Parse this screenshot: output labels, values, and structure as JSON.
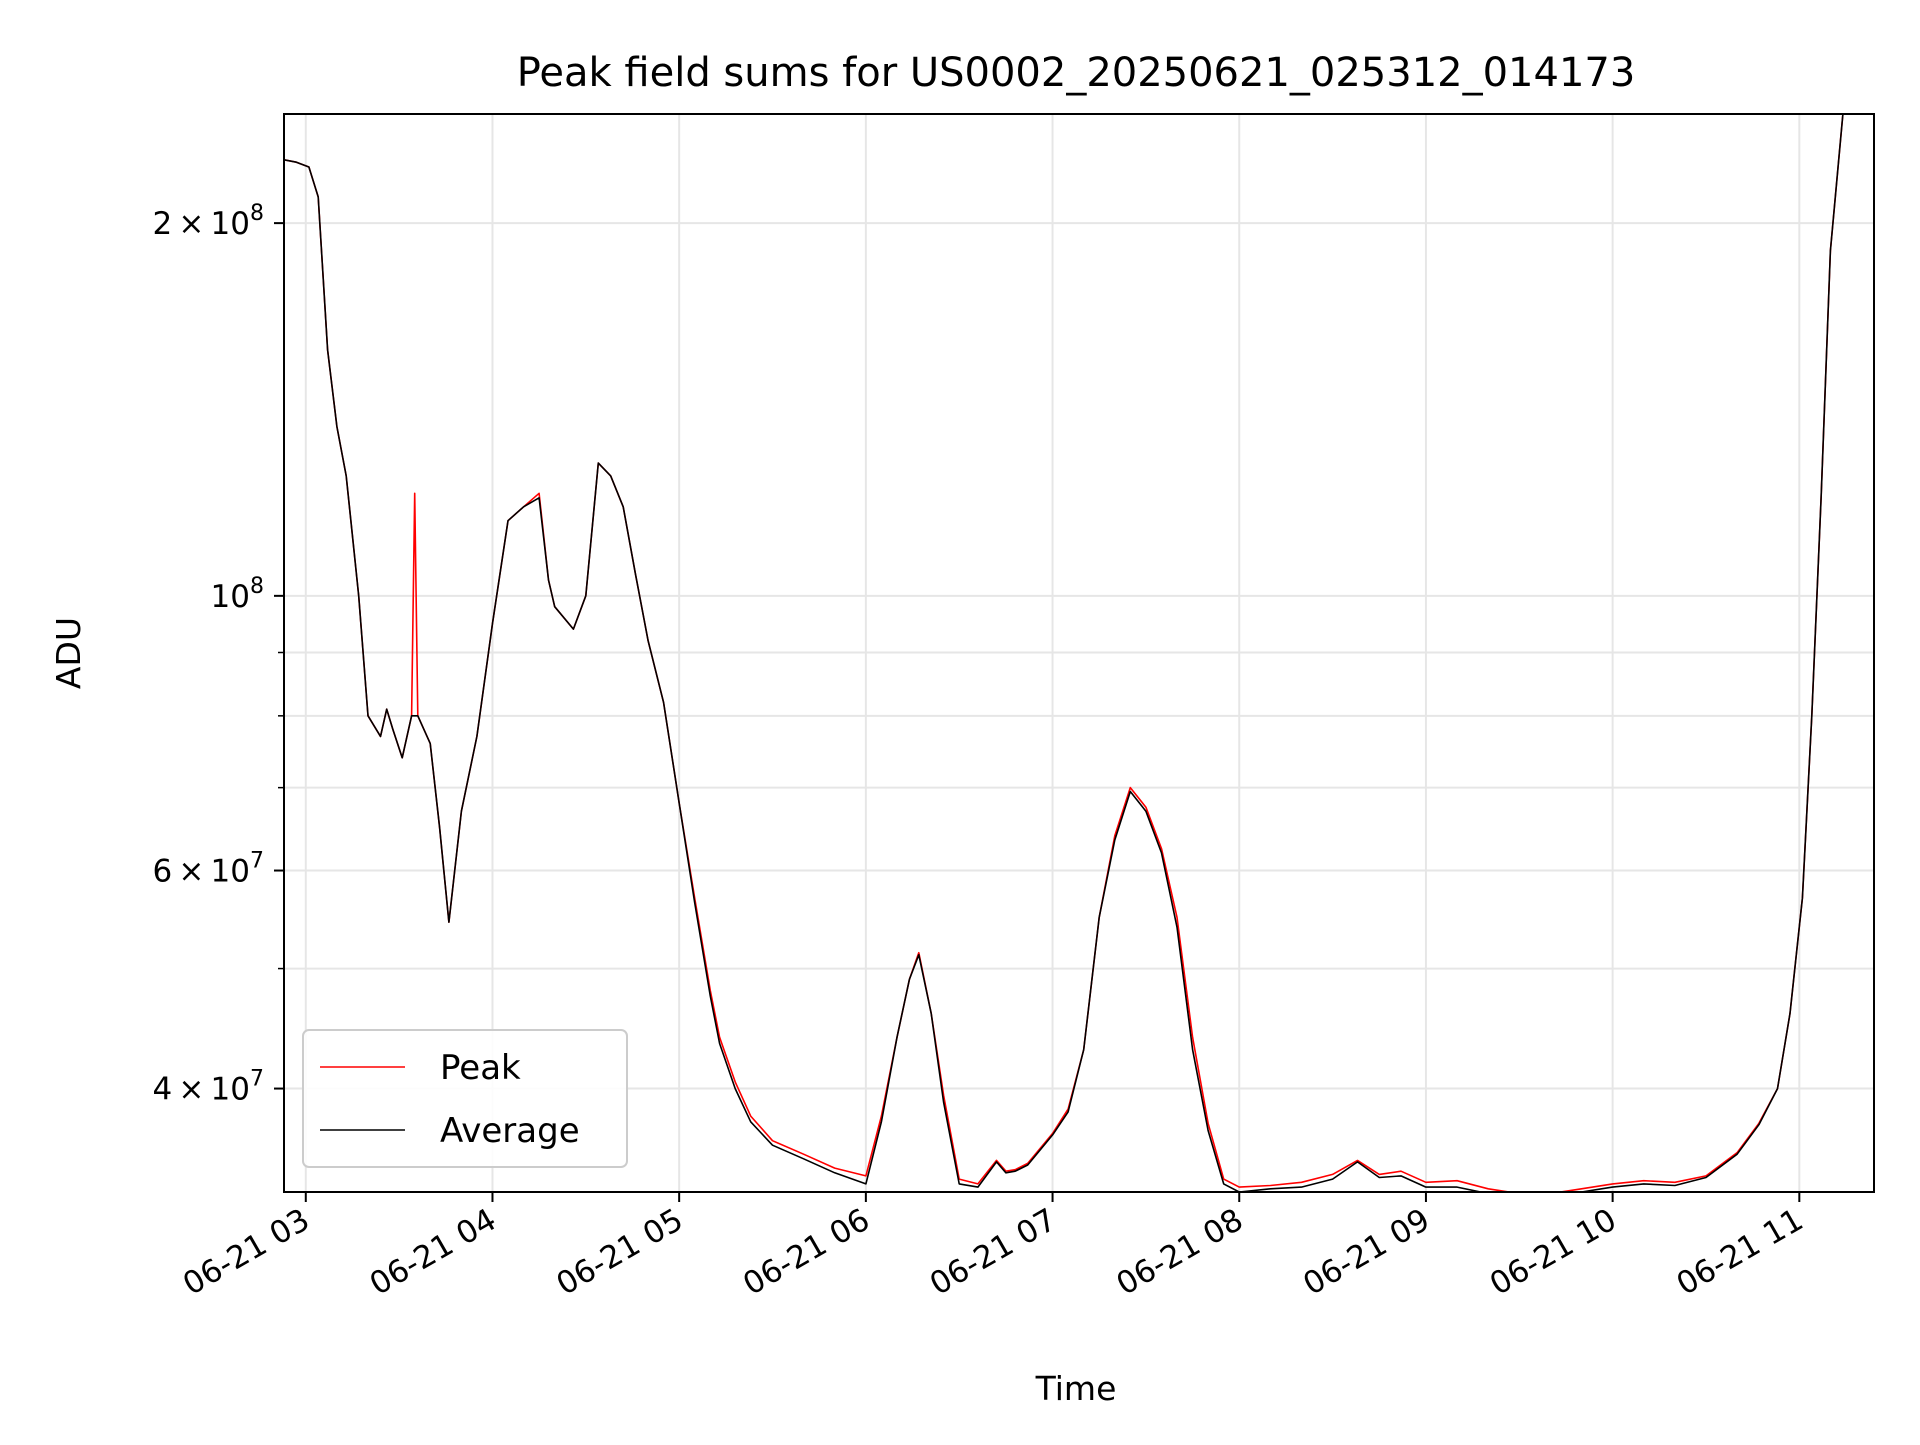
{
  "chart_data": {
    "type": "line",
    "title": "Peak field sums for US0002_20250621_025312_014173",
    "xlabel": "Time",
    "ylabel": "ADU",
    "yscale": "log",
    "grid": true,
    "legend_position": "lower-left",
    "xlim": [
      "2025-06-21 02:53",
      "2025-06-21 11:24"
    ],
    "ylim": [
      33000000,
      245000000
    ],
    "x_tick_labels": [
      "06-21 03",
      "06-21 04",
      "06-21 05",
      "06-21 06",
      "06-21 07",
      "06-21 08",
      "06-21 09",
      "06-21 10",
      "06-21 11"
    ],
    "x_tick_times": [
      "2025-06-21 03:00",
      "2025-06-21 04:00",
      "2025-06-21 05:00",
      "2025-06-21 06:00",
      "2025-06-21 07:00",
      "2025-06-21 08:00",
      "2025-06-21 09:00",
      "2025-06-21 10:00",
      "2025-06-21 11:00"
    ],
    "y_major_ticks": [
      {
        "value": 40000000,
        "mantissa": "4",
        "exponent": "7"
      },
      {
        "value": 60000000,
        "mantissa": "6",
        "exponent": "7"
      },
      {
        "value": 100000000,
        "mantissa": "",
        "exponent": "8"
      },
      {
        "value": 200000000,
        "mantissa": "2",
        "exponent": "8"
      }
    ],
    "y_minor_ticks": [
      50000000,
      70000000,
      80000000,
      90000000
    ],
    "base_label": "10",
    "times_sign": "×",
    "series": [
      {
        "name": "Peak",
        "color": "#ff0000",
        "x": [
          "2025-06-21 02:53",
          "2025-06-21 02:57",
          "2025-06-21 03:01",
          "2025-06-21 03:04",
          "2025-06-21 03:07",
          "2025-06-21 03:10",
          "2025-06-21 03:13",
          "2025-06-21 03:17",
          "2025-06-21 03:20",
          "2025-06-21 03:24",
          "2025-06-21 03:26",
          "2025-06-21 03:28",
          "2025-06-21 03:31",
          "2025-06-21 03:34",
          "2025-06-21 03:35",
          "2025-06-21 03:36",
          "2025-06-21 03:40",
          "2025-06-21 03:43",
          "2025-06-21 03:46",
          "2025-06-21 03:50",
          "2025-06-21 03:55",
          "2025-06-21 04:00",
          "2025-06-21 04:05",
          "2025-06-21 04:10",
          "2025-06-21 04:15",
          "2025-06-21 04:18",
          "2025-06-21 04:20",
          "2025-06-21 04:26",
          "2025-06-21 04:30",
          "2025-06-21 04:34",
          "2025-06-21 04:38",
          "2025-06-21 04:42",
          "2025-06-21 04:46",
          "2025-06-21 04:50",
          "2025-06-21 04:55",
          "2025-06-21 05:00",
          "2025-06-21 05:05",
          "2025-06-21 05:10",
          "2025-06-21 05:13",
          "2025-06-21 05:18",
          "2025-06-21 05:23",
          "2025-06-21 05:30",
          "2025-06-21 05:40",
          "2025-06-21 05:50",
          "2025-06-21 06:00",
          "2025-06-21 06:05",
          "2025-06-21 06:10",
          "2025-06-21 06:14",
          "2025-06-21 06:17",
          "2025-06-21 06:21",
          "2025-06-21 06:25",
          "2025-06-21 06:30",
          "2025-06-21 06:36",
          "2025-06-21 06:42",
          "2025-06-21 06:45",
          "2025-06-21 06:48",
          "2025-06-21 06:52",
          "2025-06-21 07:00",
          "2025-06-21 07:05",
          "2025-06-21 07:10",
          "2025-06-21 07:15",
          "2025-06-21 07:20",
          "2025-06-21 07:25",
          "2025-06-21 07:30",
          "2025-06-21 07:35",
          "2025-06-21 07:40",
          "2025-06-21 07:45",
          "2025-06-21 07:50",
          "2025-06-21 07:55",
          "2025-06-21 08:00",
          "2025-06-21 08:10",
          "2025-06-21 08:20",
          "2025-06-21 08:30",
          "2025-06-21 08:38",
          "2025-06-21 08:45",
          "2025-06-21 08:52",
          "2025-06-21 09:00",
          "2025-06-21 09:10",
          "2025-06-21 09:20",
          "2025-06-21 09:30",
          "2025-06-21 09:40",
          "2025-06-21 09:50",
          "2025-06-21 10:00",
          "2025-06-21 10:10",
          "2025-06-21 10:20",
          "2025-06-21 10:30",
          "2025-06-21 10:40",
          "2025-06-21 10:47",
          "2025-06-21 10:53",
          "2025-06-21 10:57",
          "2025-06-21 11:01",
          "2025-06-21 11:04",
          "2025-06-21 11:07",
          "2025-06-21 11:10",
          "2025-06-21 11:14"
        ],
        "y": [
          225000000,
          224000000,
          222000000,
          210000000,
          158000000,
          137000000,
          125000000,
          100000000,
          80000000,
          77000000,
          81000000,
          78000000,
          74000000,
          80000000,
          121000000,
          80000000,
          76000000,
          65000000,
          54500000,
          67000000,
          77000000,
          95000000,
          115000000,
          118000000,
          121000000,
          103000000,
          98000000,
          94000000,
          100000000,
          128000000,
          125000000,
          118000000,
          104000000,
          92000000,
          82000000,
          68000000,
          57000000,
          48000000,
          44000000,
          40500000,
          38000000,
          36300000,
          35400000,
          34500000,
          34000000,
          38000000,
          44000000,
          49000000,
          51500000,
          46000000,
          39500000,
          33800000,
          33500000,
          35000000,
          34300000,
          34400000,
          34800000,
          36800000,
          38500000,
          43000000,
          55000000,
          64000000,
          70000000,
          67500000,
          62500000,
          55000000,
          44000000,
          37500000,
          33800000,
          33300000,
          33400000,
          33600000,
          34100000,
          35000000,
          34100000,
          34300000,
          33600000,
          33700000,
          33200000,
          32900000,
          32900000,
          33200000,
          33500000,
          33700000,
          33600000,
          34000000,
          35500000,
          37500000,
          40000000,
          46000000,
          57000000,
          80000000,
          120000000,
          190000000,
          245000000
        ]
      },
      {
        "name": "Average",
        "color": "#000000",
        "x": [
          "2025-06-21 02:53",
          "2025-06-21 02:57",
          "2025-06-21 03:01",
          "2025-06-21 03:04",
          "2025-06-21 03:07",
          "2025-06-21 03:10",
          "2025-06-21 03:13",
          "2025-06-21 03:17",
          "2025-06-21 03:20",
          "2025-06-21 03:24",
          "2025-06-21 03:26",
          "2025-06-21 03:28",
          "2025-06-21 03:31",
          "2025-06-21 03:34",
          "2025-06-21 03:36",
          "2025-06-21 03:40",
          "2025-06-21 03:43",
          "2025-06-21 03:46",
          "2025-06-21 03:50",
          "2025-06-21 03:55",
          "2025-06-21 04:00",
          "2025-06-21 04:05",
          "2025-06-21 04:10",
          "2025-06-21 04:15",
          "2025-06-21 04:18",
          "2025-06-21 04:20",
          "2025-06-21 04:26",
          "2025-06-21 04:30",
          "2025-06-21 04:34",
          "2025-06-21 04:38",
          "2025-06-21 04:42",
          "2025-06-21 04:46",
          "2025-06-21 04:50",
          "2025-06-21 04:55",
          "2025-06-21 05:00",
          "2025-06-21 05:05",
          "2025-06-21 05:10",
          "2025-06-21 05:13",
          "2025-06-21 05:18",
          "2025-06-21 05:23",
          "2025-06-21 05:30",
          "2025-06-21 05:40",
          "2025-06-21 05:50",
          "2025-06-21 06:00",
          "2025-06-21 06:05",
          "2025-06-21 06:10",
          "2025-06-21 06:14",
          "2025-06-21 06:17",
          "2025-06-21 06:21",
          "2025-06-21 06:25",
          "2025-06-21 06:30",
          "2025-06-21 06:36",
          "2025-06-21 06:42",
          "2025-06-21 06:45",
          "2025-06-21 06:48",
          "2025-06-21 06:52",
          "2025-06-21 07:00",
          "2025-06-21 07:05",
          "2025-06-21 07:10",
          "2025-06-21 07:15",
          "2025-06-21 07:20",
          "2025-06-21 07:25",
          "2025-06-21 07:30",
          "2025-06-21 07:35",
          "2025-06-21 07:40",
          "2025-06-21 07:45",
          "2025-06-21 07:50",
          "2025-06-21 07:55",
          "2025-06-21 08:00",
          "2025-06-21 08:10",
          "2025-06-21 08:20",
          "2025-06-21 08:30",
          "2025-06-21 08:38",
          "2025-06-21 08:45",
          "2025-06-21 08:52",
          "2025-06-21 09:00",
          "2025-06-21 09:10",
          "2025-06-21 09:20",
          "2025-06-21 09:30",
          "2025-06-21 09:40",
          "2025-06-21 09:50",
          "2025-06-21 10:00",
          "2025-06-21 10:10",
          "2025-06-21 10:20",
          "2025-06-21 10:30",
          "2025-06-21 10:40",
          "2025-06-21 10:47",
          "2025-06-21 10:53",
          "2025-06-21 10:57",
          "2025-06-21 11:01",
          "2025-06-21 11:04",
          "2025-06-21 11:07",
          "2025-06-21 11:10",
          "2025-06-21 11:14"
        ],
        "y": [
          225000000,
          224000000,
          222000000,
          210000000,
          158000000,
          137000000,
          125000000,
          100000000,
          80000000,
          77000000,
          81000000,
          78000000,
          74000000,
          80000000,
          80000000,
          76000000,
          65000000,
          54500000,
          67000000,
          77000000,
          95000000,
          115000000,
          118000000,
          120000000,
          103000000,
          98000000,
          94000000,
          100000000,
          128000000,
          125000000,
          118000000,
          104000000,
          92000000,
          82000000,
          68000000,
          56500000,
          47500000,
          43500000,
          40000000,
          37600000,
          36000000,
          35100000,
          34200000,
          33500000,
          37600000,
          44000000,
          49000000,
          51300000,
          46000000,
          39000000,
          33500000,
          33300000,
          34900000,
          34200000,
          34300000,
          34700000,
          36700000,
          38300000,
          43000000,
          55000000,
          63500000,
          69500000,
          67000000,
          62000000,
          54000000,
          43000000,
          37000000,
          33500000,
          33000000,
          33200000,
          33300000,
          33800000,
          34900000,
          33900000,
          34000000,
          33300000,
          33300000,
          32900000,
          32700000,
          32700000,
          33000000,
          33300000,
          33500000,
          33400000,
          33900000,
          35400000,
          37400000,
          40000000,
          46000000,
          57000000,
          80000000,
          120000000,
          190000000,
          245000000
        ]
      }
    ]
  }
}
